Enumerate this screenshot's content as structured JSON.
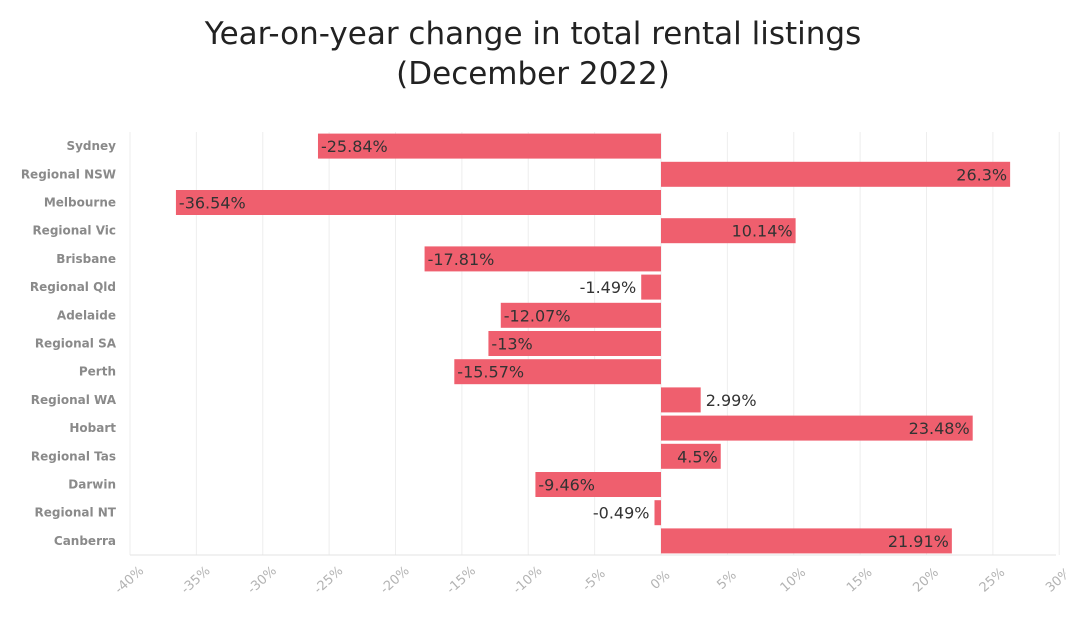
{
  "chart_data": {
    "type": "bar",
    "orientation": "horizontal",
    "title": "Year-on-year change in total rental listings",
    "subtitle": "(December 2022)",
    "categories": [
      "Sydney",
      "Regional NSW",
      "Melbourne",
      "Regional Vic",
      "Brisbane",
      "Regional Qld",
      "Adelaide",
      "Regional SA",
      "Perth",
      "Regional WA",
      "Hobart",
      "Regional Tas",
      "Darwin",
      "Regional NT",
      "Canberra"
    ],
    "values": [
      -25.84,
      26.3,
      -36.54,
      10.14,
      -17.81,
      -1.49,
      -12.07,
      -13,
      -15.57,
      2.99,
      23.48,
      4.5,
      -9.46,
      -0.49,
      21.91
    ],
    "data_labels": [
      "-25.84%",
      "26.3%",
      "-36.54%",
      "10.14%",
      "-17.81%",
      "-1.49%",
      "-12.07%",
      "-13%",
      "-15.57%",
      "2.99%",
      "23.48%",
      "4.5%",
      "-9.46%",
      "-0.49%",
      "21.91%"
    ],
    "xlim": [
      -40,
      30
    ],
    "xticks": [
      -40,
      -35,
      -30,
      -25,
      -20,
      -15,
      -10,
      -5,
      0,
      5,
      10,
      15,
      20,
      25,
      30
    ],
    "xtick_labels": [
      "-40%",
      "-35%",
      "-30%",
      "-25%",
      "-20%",
      "-15%",
      "-10%",
      "-5%",
      "0%",
      "5%",
      "10%",
      "15%",
      "20%",
      "25%",
      "30%"
    ],
    "xlabel": "",
    "ylabel": "",
    "grid": "vertical",
    "legend": "none",
    "bar_color": "#ef5f6e"
  }
}
